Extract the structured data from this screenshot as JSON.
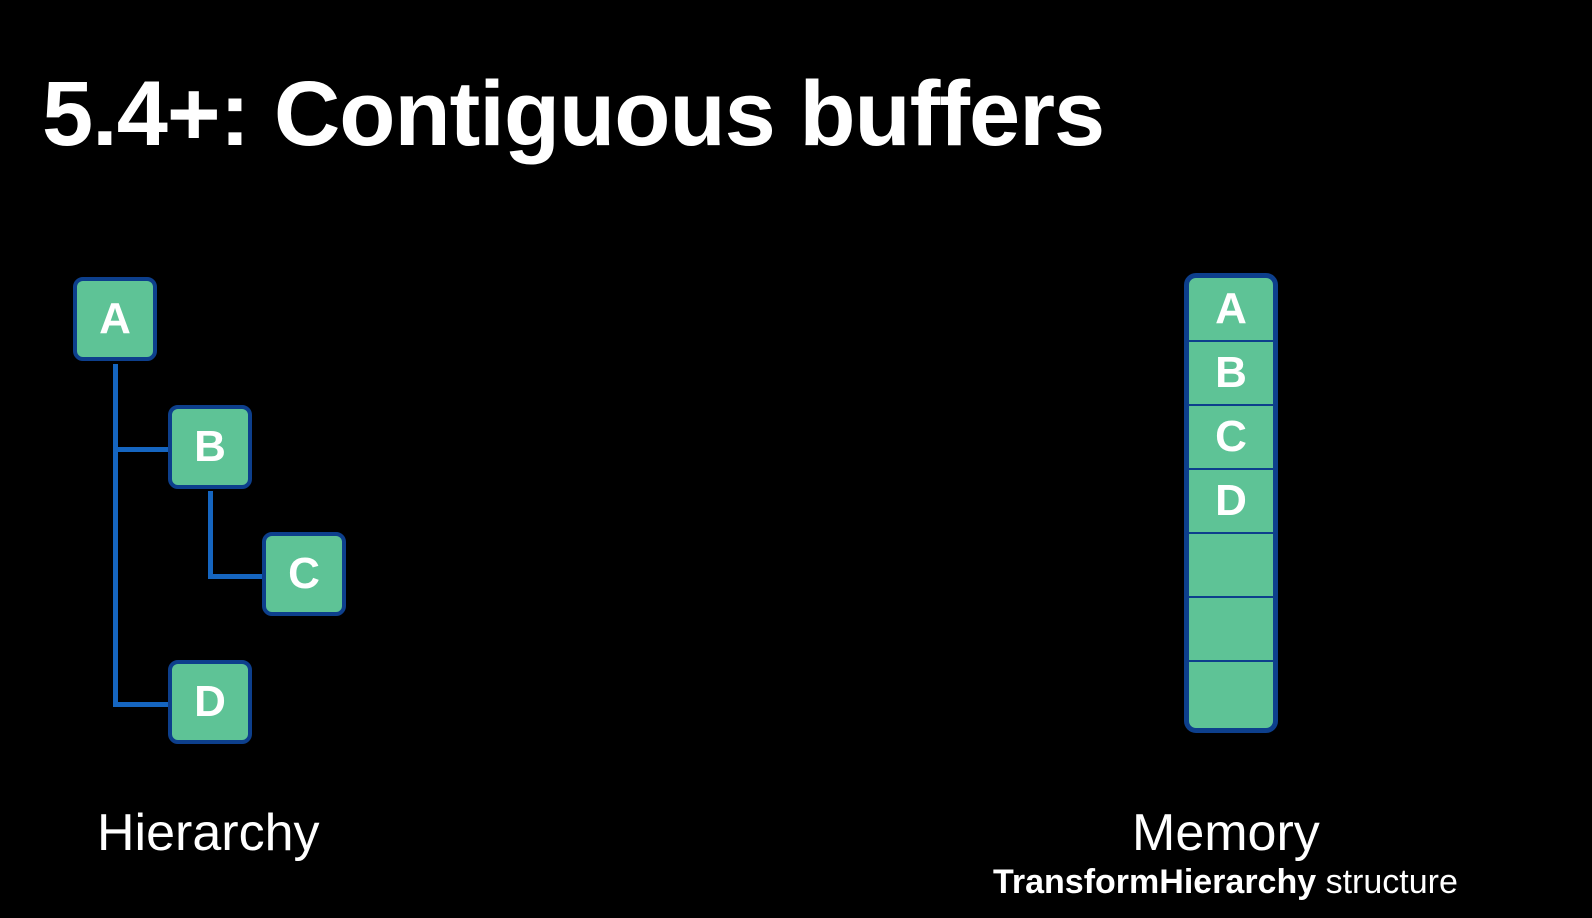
{
  "title": "5.4+: Contiguous buffers",
  "hierarchy": {
    "caption": "Hierarchy",
    "nodes": [
      "A",
      "B",
      "C",
      "D"
    ]
  },
  "memory": {
    "caption": "Memory",
    "subcaption_bold": "TransformHierarchy",
    "subcaption_rest": " structure",
    "cells": [
      "A",
      "B",
      "C",
      "D",
      "",
      "",
      ""
    ]
  },
  "colors": {
    "node_fill": "#5ec396",
    "node_border": "#0d3f8c",
    "connector": "#1565c0",
    "background": "#000000"
  }
}
